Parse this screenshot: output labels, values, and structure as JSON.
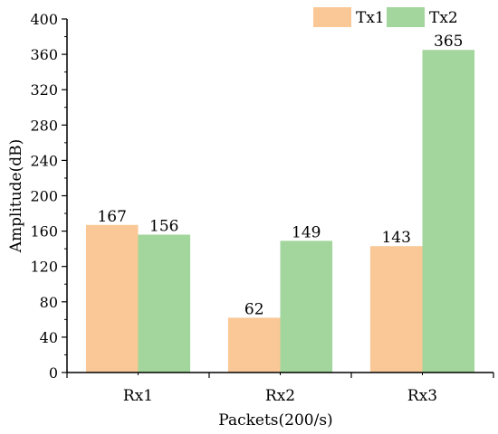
{
  "chart_data": {
    "type": "bar",
    "title": "",
    "xlabel": "Packets(200/s)",
    "ylabel": "Amplitude(dB)",
    "categories": [
      "Rx1",
      "Rx2",
      "Rx3"
    ],
    "ylim": [
      0,
      400
    ],
    "yticks": [
      0,
      40,
      80,
      120,
      160,
      200,
      240,
      280,
      320,
      360,
      400
    ],
    "grid": false,
    "legend_position": "top-right",
    "series": [
      {
        "name": "Tx1",
        "values": [
          167,
          62,
          143
        ],
        "color": "#f9c896"
      },
      {
        "name": "Tx2",
        "values": [
          156,
          149,
          365
        ],
        "color": "#a2d69c"
      }
    ]
  }
}
